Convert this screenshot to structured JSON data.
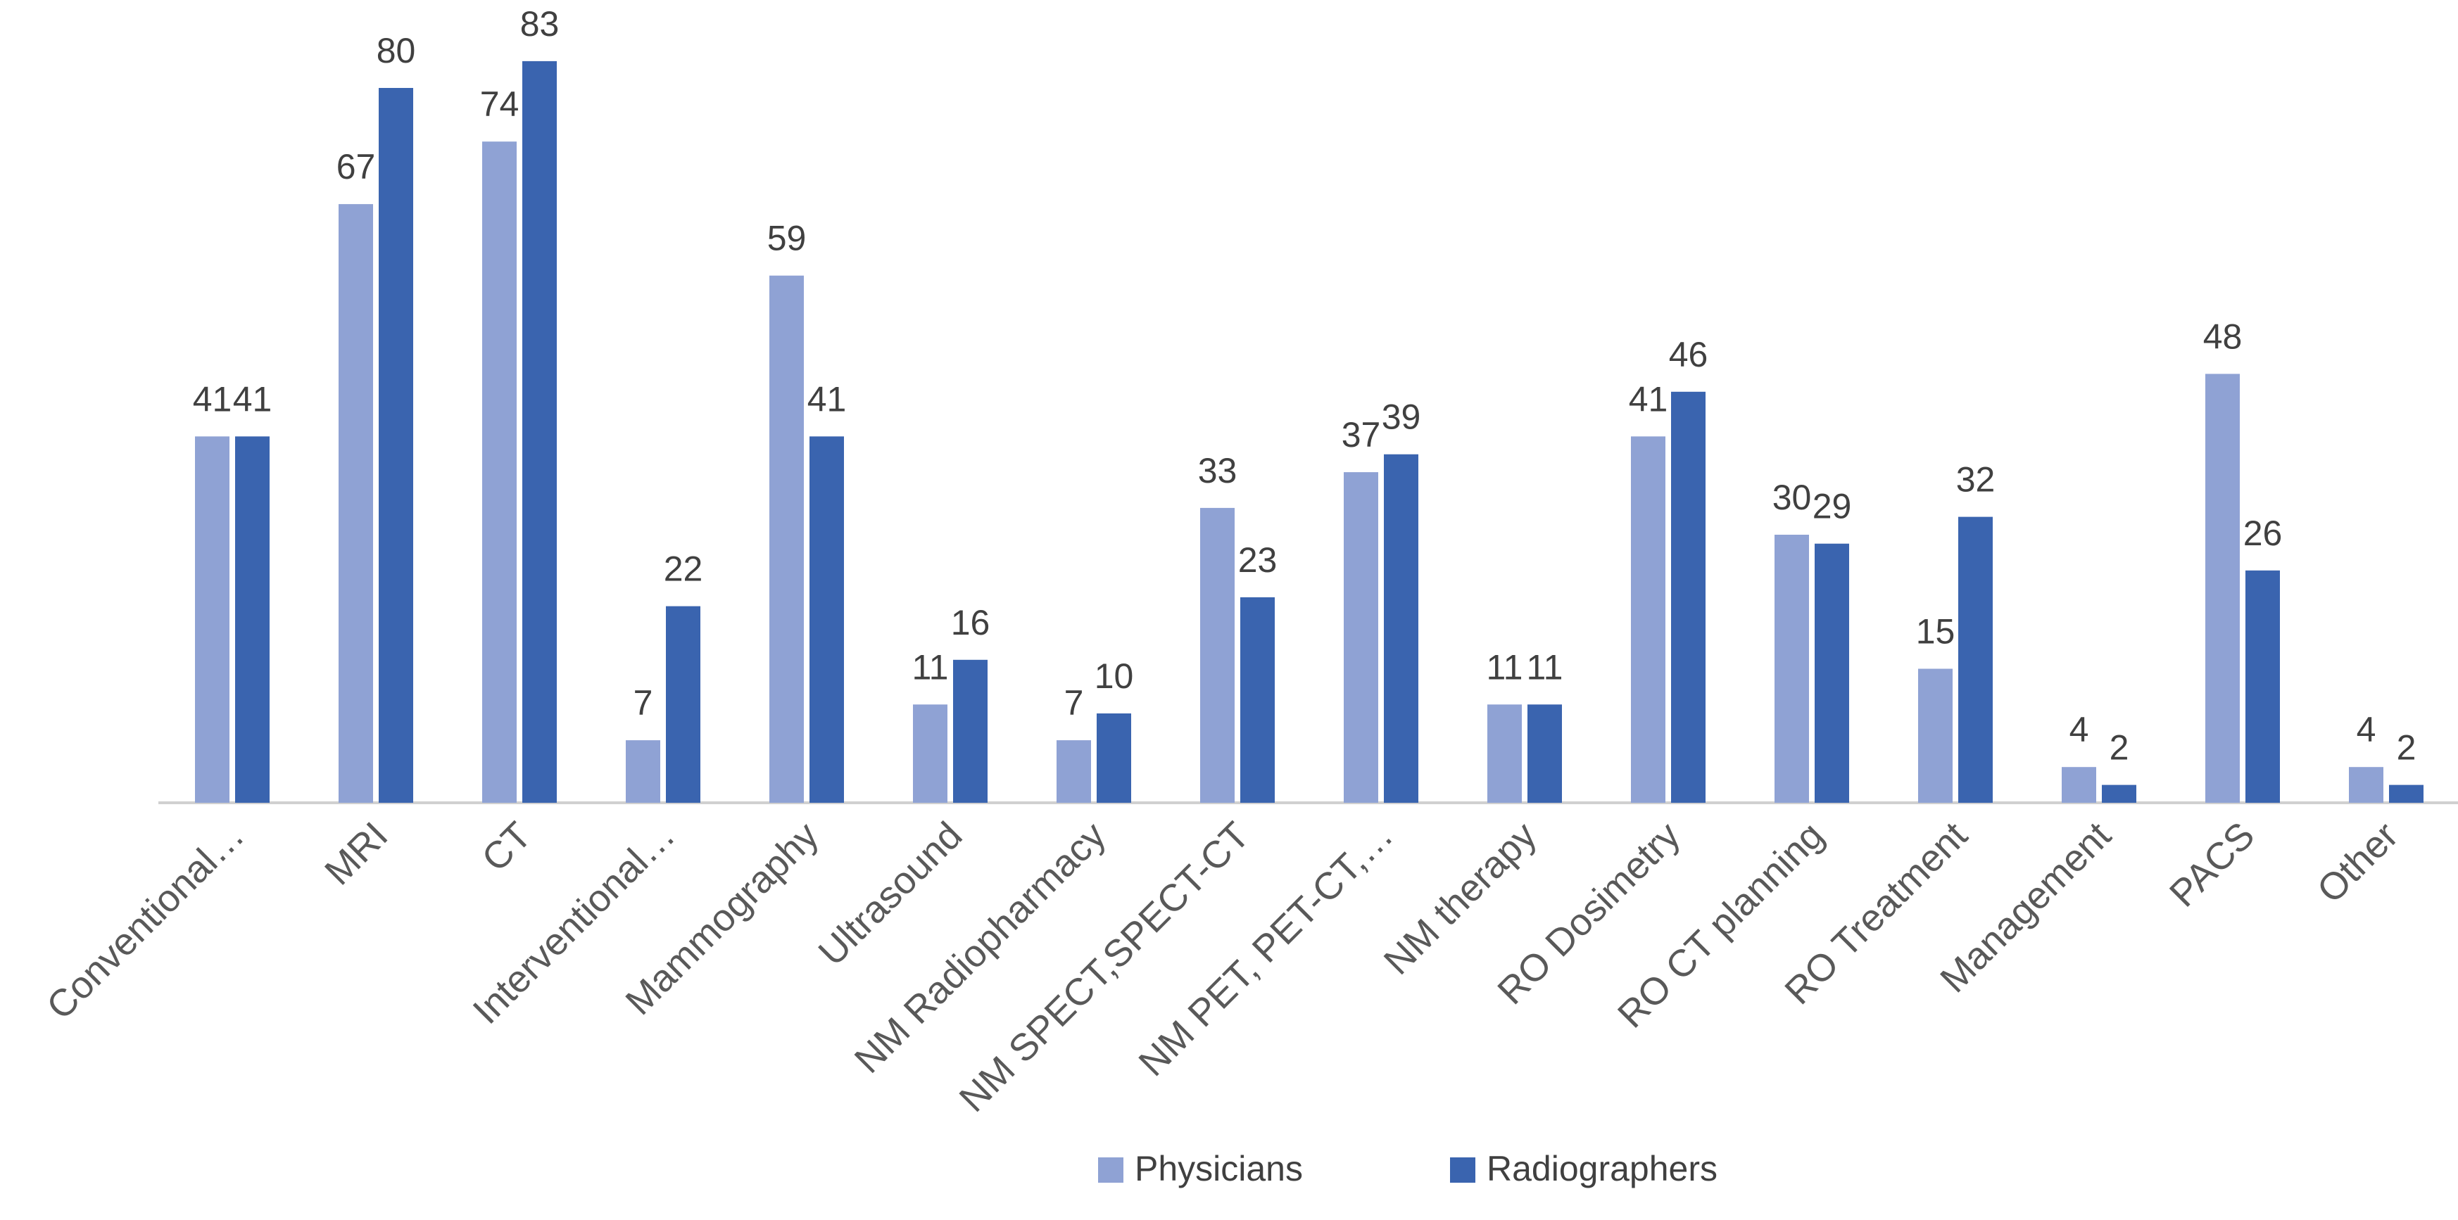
{
  "chart_data": {
    "type": "bar",
    "title": "",
    "xlabel": "",
    "ylabel": "",
    "ylim": [
      0,
      85
    ],
    "grid": false,
    "legend_position": "bottom",
    "categories": [
      "Conventional…",
      "MRI",
      "CT",
      "Interventional…",
      "Mammography",
      "Ultrasound",
      "NM Radiopharmacy",
      "NM SPECT,SPECT-CT",
      "NM PET, PET-CT,…",
      "NM therapy",
      "RO Dosimetry",
      "RO CT planning",
      "RO Treatment",
      "Management",
      "PACS",
      "Other"
    ],
    "series": [
      {
        "name": "Physicians",
        "color": "#8FA2D4",
        "values": [
          41,
          67,
          74,
          7,
          59,
          11,
          7,
          33,
          37,
          11,
          41,
          30,
          15,
          4,
          48,
          4
        ]
      },
      {
        "name": "Radiographers",
        "color": "#3A64AF",
        "values": [
          41,
          80,
          83,
          22,
          41,
          16,
          10,
          23,
          39,
          11,
          46,
          29,
          32,
          2,
          26,
          2
        ]
      }
    ]
  }
}
